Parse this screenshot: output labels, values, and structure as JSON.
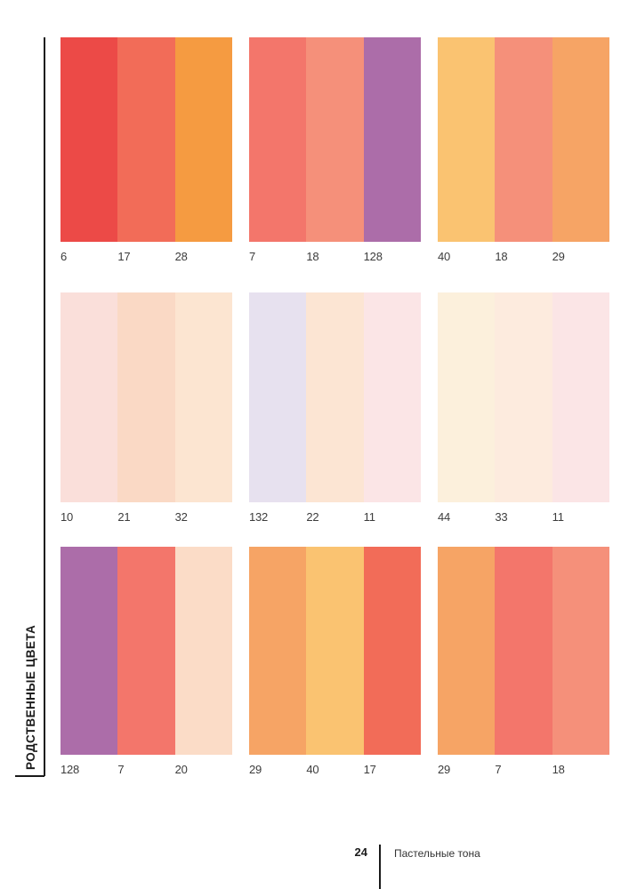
{
  "sidebar": {
    "label": "РОДСТВЕННЫЕ ЦВЕТА"
  },
  "footer": {
    "page_number": "24",
    "chapter": "Пастельные тона"
  },
  "palette": {
    "colors": {
      "6": "#EC4A47",
      "7": "#F3766B",
      "10": "#FADFDA",
      "11": "#FBE5E6",
      "17": "#F26C58",
      "18": "#F5907A",
      "20": "#FBDCC7",
      "21": "#FAD9C5",
      "22": "#FCE5D3",
      "28": "#F59B41",
      "29": "#F6A465",
      "32": "#FCE5D1",
      "33": "#FDEBDE",
      "40": "#FAC371",
      "44": "#FCF0DC",
      "128": "#AC6DA9",
      "132": "#E7E1EF"
    },
    "rows": [
      {
        "swatches": [
          {
            "bands": [
              "6",
              "17",
              "28"
            ]
          },
          {
            "bands": [
              "7",
              "18",
              "128"
            ]
          },
          {
            "bands": [
              "40",
              "18",
              "29"
            ]
          }
        ]
      },
      {
        "swatches": [
          {
            "bands": [
              "10",
              "21",
              "32"
            ]
          },
          {
            "bands": [
              "132",
              "22",
              "11"
            ]
          },
          {
            "bands": [
              "44",
              "33",
              "11"
            ]
          }
        ]
      },
      {
        "swatches": [
          {
            "bands": [
              "128",
              "7",
              "20"
            ]
          },
          {
            "bands": [
              "29",
              "40",
              "17"
            ]
          },
          {
            "bands": [
              "29",
              "7",
              "18"
            ]
          }
        ]
      }
    ]
  }
}
